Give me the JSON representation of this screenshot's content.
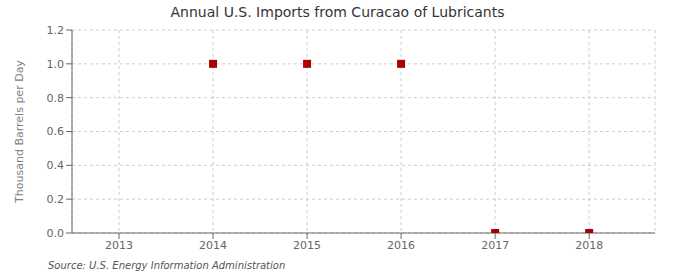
{
  "chart_data": {
    "type": "scatter",
    "title": "Annual U.S. Imports from Curacao of Lubricants",
    "ylabel": "Thousand Barrels per Day",
    "annotation": "Source: U.S. Energy Information Administration",
    "x": [
      2014,
      2015,
      2016,
      2017,
      2018
    ],
    "values": [
      1.0,
      1.0,
      1.0,
      0.0,
      0.0
    ],
    "color": "#aa0000",
    "marker": "square",
    "xlim": [
      2012.5,
      2018.7
    ],
    "xticks": [
      2013,
      2014,
      2015,
      2016,
      2017,
      2018
    ],
    "ylim": [
      0.0,
      1.2
    ],
    "yticks": [
      {
        "value": 0.0,
        "label": "0.0"
      },
      {
        "value": 0.2,
        "label": "0.2"
      },
      {
        "value": 0.4,
        "label": "0.4"
      },
      {
        "value": 0.6,
        "label": "0.6"
      },
      {
        "value": 0.8,
        "label": "0.8"
      },
      {
        "value": 1.0,
        "label": "1.0"
      },
      {
        "value": 1.2,
        "label": "1.2"
      }
    ],
    "grid": true
  }
}
